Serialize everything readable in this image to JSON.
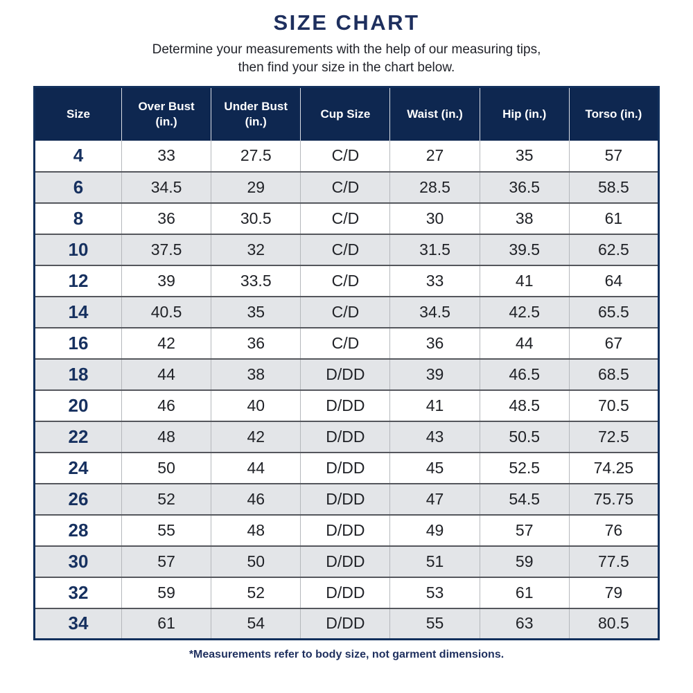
{
  "page": {
    "title": "SIZE CHART",
    "subtitle_line1": "Determine your measurements with the help of our measuring tips,",
    "subtitle_line2": "then find your size in the chart below.",
    "footnote": "*Measurements refer to body size, not garment dimensions."
  },
  "colors": {
    "header_background": "#0e2750",
    "header_text": "#ffffff",
    "title_navy": "#1e2f5e",
    "size_column_navy": "#16305f",
    "alt_row_gray": "#e3e5e8",
    "row_divider": "#54565c",
    "column_divider": "#b4b7bb",
    "outer_border_navy": "#12305c",
    "body_text": "#202227"
  },
  "chart_data": {
    "type": "table",
    "title": "SIZE CHART",
    "columns": [
      "Size",
      "Over Bust (in.)",
      "Under Bust (in.)",
      "Cup Size",
      "Waist (in.)",
      "Hip (in.)",
      "Torso (in.)"
    ],
    "rows": [
      [
        "4",
        "33",
        "27.5",
        "C/D",
        "27",
        "35",
        "57"
      ],
      [
        "6",
        "34.5",
        "29",
        "C/D",
        "28.5",
        "36.5",
        "58.5"
      ],
      [
        "8",
        "36",
        "30.5",
        "C/D",
        "30",
        "38",
        "61"
      ],
      [
        "10",
        "37.5",
        "32",
        "C/D",
        "31.5",
        "39.5",
        "62.5"
      ],
      [
        "12",
        "39",
        "33.5",
        "C/D",
        "33",
        "41",
        "64"
      ],
      [
        "14",
        "40.5",
        "35",
        "C/D",
        "34.5",
        "42.5",
        "65.5"
      ],
      [
        "16",
        "42",
        "36",
        "C/D",
        "36",
        "44",
        "67"
      ],
      [
        "18",
        "44",
        "38",
        "D/DD",
        "39",
        "46.5",
        "68.5"
      ],
      [
        "20",
        "46",
        "40",
        "D/DD",
        "41",
        "48.5",
        "70.5"
      ],
      [
        "22",
        "48",
        "42",
        "D/DD",
        "43",
        "50.5",
        "72.5"
      ],
      [
        "24",
        "50",
        "44",
        "D/DD",
        "45",
        "52.5",
        "74.25"
      ],
      [
        "26",
        "52",
        "46",
        "D/DD",
        "47",
        "54.5",
        "75.75"
      ],
      [
        "28",
        "55",
        "48",
        "D/DD",
        "49",
        "57",
        "76"
      ],
      [
        "30",
        "57",
        "50",
        "D/DD",
        "51",
        "59",
        "77.5"
      ],
      [
        "32",
        "59",
        "52",
        "D/DD",
        "53",
        "61",
        "79"
      ],
      [
        "34",
        "61",
        "54",
        "D/DD",
        "55",
        "63",
        "80.5"
      ]
    ]
  }
}
